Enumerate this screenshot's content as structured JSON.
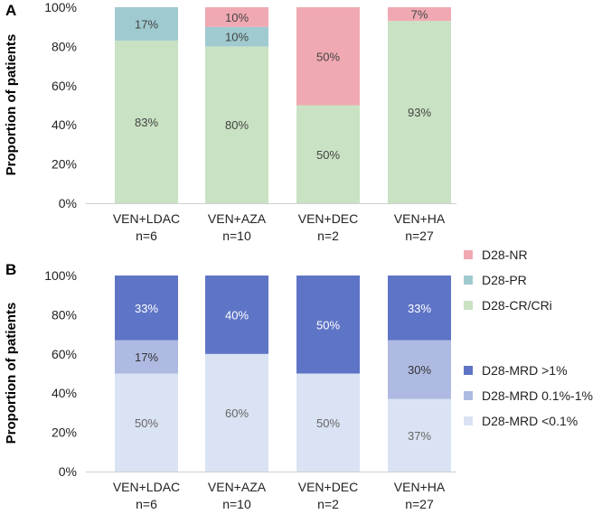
{
  "chart_data": [
    {
      "panel": "A",
      "type": "bar",
      "stacked": true,
      "ylabel": "Proportion of patients",
      "ylim": [
        0,
        100
      ],
      "yticks": [
        "0%",
        "20%",
        "40%",
        "60%",
        "80%",
        "100%"
      ],
      "categories": [
        {
          "line1": "VEN+LDAC",
          "line2": "n=6"
        },
        {
          "line1": "VEN+AZA",
          "line2": "n=10"
        },
        {
          "line1": "VEN+DEC",
          "line2": "n=2"
        },
        {
          "line1": "VEN+HA",
          "line2": "n=27"
        }
      ],
      "series": [
        {
          "name": "D28-CR/CRi",
          "values": [
            83,
            80,
            50,
            93
          ],
          "labels": [
            "83%",
            "80%",
            "50%",
            "93%"
          ],
          "color": "#c9e2c3",
          "text_color": "#444444"
        },
        {
          "name": "D28-PR",
          "values": [
            17,
            10,
            0,
            0
          ],
          "labels": [
            "17%",
            "10%",
            "",
            ""
          ],
          "color": "#9fcad0",
          "text_color": "#444444"
        },
        {
          "name": "D28-NR",
          "values": [
            0,
            10,
            50,
            7
          ],
          "labels": [
            "",
            "10%",
            "50%",
            "7%"
          ],
          "color": "#f0a9b2",
          "text_color": "#444444"
        }
      ],
      "legend": [
        "D28-NR",
        "D28-PR",
        "D28-CR/CRi"
      ]
    },
    {
      "panel": "B",
      "type": "bar",
      "stacked": true,
      "ylabel": "Proportion of patients",
      "ylim": [
        0,
        100
      ],
      "yticks": [
        "0%",
        "20%",
        "40%",
        "60%",
        "80%",
        "100%"
      ],
      "categories": [
        {
          "line1": "VEN+LDAC",
          "line2": "n=6"
        },
        {
          "line1": "VEN+AZA",
          "line2": "n=10"
        },
        {
          "line1": "VEN+DEC",
          "line2": "n=2"
        },
        {
          "line1": "VEN+HA",
          "line2": "n=27"
        }
      ],
      "series": [
        {
          "name": "D28-MRD <0.1%",
          "values": [
            50,
            60,
            50,
            37
          ],
          "labels": [
            "50%",
            "60%",
            "50%",
            "37%"
          ],
          "color": "#dae3f3",
          "text_color": "#666666"
        },
        {
          "name": "D28-MRD 0.1%-1%",
          "values": [
            17,
            0,
            0,
            30
          ],
          "labels": [
            "17%",
            "",
            "",
            "30%"
          ],
          "color": "#afbae3",
          "text_color": "#333333"
        },
        {
          "name": "D28-MRD >1%",
          "values": [
            33,
            40,
            50,
            33
          ],
          "labels": [
            "33%",
            "40%",
            "50%",
            "33%"
          ],
          "color": "#5e74c6",
          "text_color": "#ffffff"
        }
      ],
      "legend": [
        "D28-MRD >1%",
        "D28-MRD 0.1%-1%",
        "D28-MRD <0.1%"
      ]
    }
  ]
}
